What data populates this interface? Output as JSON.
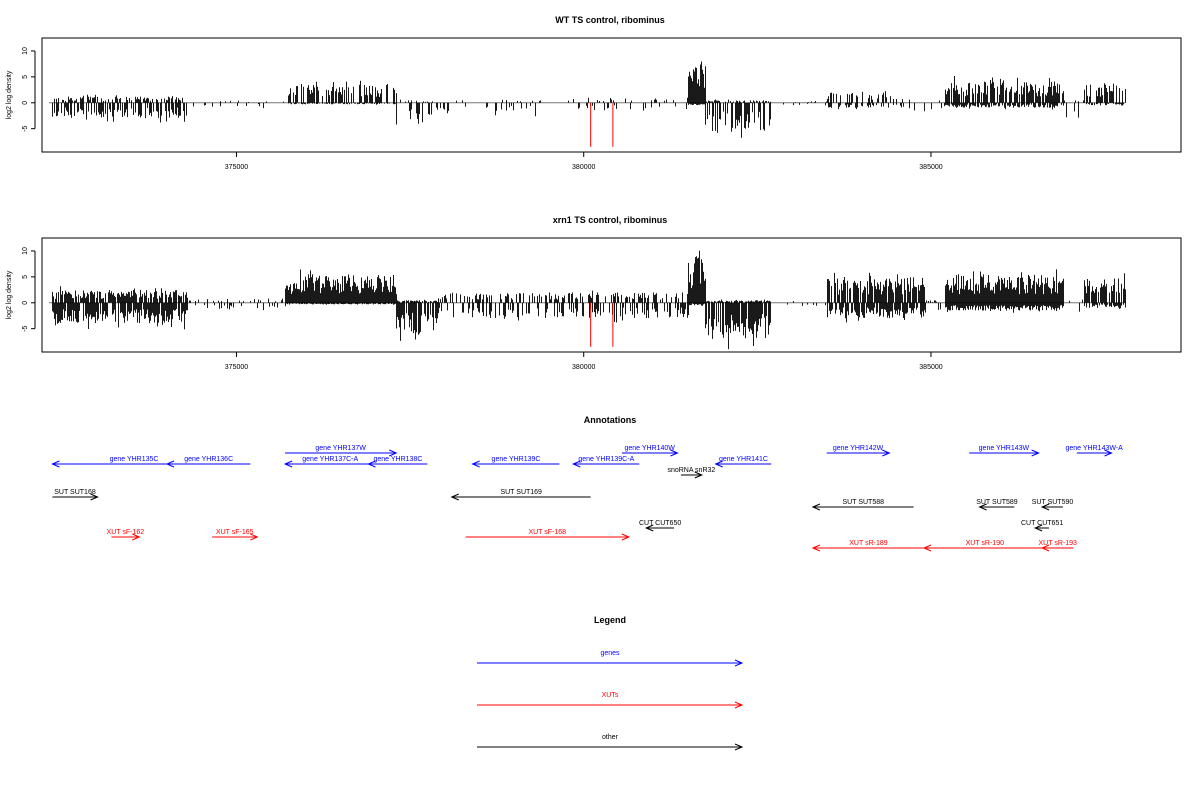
{
  "chart_data": [
    {
      "type": "bar",
      "title": "WT TS control, ribominus",
      "ylabel": "log2 log density",
      "xlim": [
        372200,
        388600
      ],
      "ylim": [
        -9.5,
        12.5
      ],
      "yticks": [
        -5,
        0,
        5,
        10
      ],
      "xticks": [
        375000,
        380000,
        385000
      ],
      "xtick_labels": [
        "375000",
        "380000",
        "385000"
      ],
      "baseline_range": [
        372300,
        387800
      ],
      "colors": {
        "bars": "#000000",
        "highlight": "#ff0000",
        "baseline": "#777777"
      },
      "highlight_lines": [
        {
          "x": 380100,
          "y": -8.5
        },
        {
          "x": 380420,
          "y": -8.5
        }
      ],
      "segments": [
        {
          "from": 372350,
          "to": 374300,
          "pos": 1.2,
          "neg": 3.0,
          "density": 0.5
        },
        {
          "from": 374300,
          "to": 375700,
          "pos": 0.4,
          "neg": 0.8,
          "density": 0.08
        },
        {
          "from": 375700,
          "to": 377300,
          "pos": 3.5,
          "neg": 0.3,
          "density": 0.55
        },
        {
          "from": 377300,
          "to": 377800,
          "pos": 0.5,
          "neg": 4.0,
          "density": 0.4
        },
        {
          "from": 377800,
          "to": 379400,
          "pos": 0.6,
          "neg": 2.0,
          "density": 0.15
        },
        {
          "from": 379400,
          "to": 381500,
          "pos": 1.0,
          "neg": 1.5,
          "density": 0.12
        },
        {
          "from": 381500,
          "to": 381750,
          "pos": 9.0,
          "neg": 0.5,
          "density": 1.0
        },
        {
          "from": 381750,
          "to": 382700,
          "pos": 0.5,
          "neg": 5.5,
          "density": 0.6
        },
        {
          "from": 382700,
          "to": 383500,
          "pos": 0.3,
          "neg": 0.5,
          "density": 0.06
        },
        {
          "from": 383500,
          "to": 384600,
          "pos": 2.0,
          "neg": 1.0,
          "density": 0.4
        },
        {
          "from": 384600,
          "to": 385200,
          "pos": 0.5,
          "neg": 1.5,
          "density": 0.1
        },
        {
          "from": 385200,
          "to": 386900,
          "pos": 4.0,
          "neg": 1.0,
          "density": 0.75
        },
        {
          "from": 386900,
          "to": 387200,
          "pos": 0.5,
          "neg": 4.0,
          "density": 0.15
        },
        {
          "from": 387200,
          "to": 387800,
          "pos": 3.8,
          "neg": 0.5,
          "density": 0.6
        }
      ]
    },
    {
      "type": "bar",
      "title": "xrn1 TS control, ribominus",
      "ylabel": "log2 log density",
      "xlim": [
        372200,
        388600
      ],
      "ylim": [
        -9.5,
        12.5
      ],
      "yticks": [
        -5,
        0,
        5,
        10
      ],
      "xticks": [
        375000,
        380000,
        385000
      ],
      "xtick_labels": [
        "375000",
        "380000",
        "385000"
      ],
      "baseline_range": [
        372300,
        387800
      ],
      "colors": {
        "bars": "#000000",
        "highlight": "#ff0000",
        "baseline": "#777777"
      },
      "highlight_lines": [
        {
          "x": 380100,
          "y": -8.5
        },
        {
          "x": 380420,
          "y": -8.5
        }
      ],
      "segments": [
        {
          "from": 372350,
          "to": 374300,
          "pos": 2.5,
          "neg": 4.0,
          "density": 0.8
        },
        {
          "from": 374300,
          "to": 375700,
          "pos": 0.8,
          "neg": 1.2,
          "density": 0.2
        },
        {
          "from": 375700,
          "to": 377300,
          "pos": 5.5,
          "neg": 0.3,
          "density": 1.0
        },
        {
          "from": 377300,
          "to": 377900,
          "pos": 0.5,
          "neg": 6.0,
          "density": 0.75
        },
        {
          "from": 377900,
          "to": 381500,
          "pos": 2.0,
          "neg": 3.0,
          "density": 0.45
        },
        {
          "from": 381500,
          "to": 381750,
          "pos": 9.0,
          "neg": 0.5,
          "density": 1.0
        },
        {
          "from": 381750,
          "to": 382700,
          "pos": 0.5,
          "neg": 7.0,
          "density": 0.85
        },
        {
          "from": 382700,
          "to": 383500,
          "pos": 0.4,
          "neg": 0.6,
          "density": 0.08
        },
        {
          "from": 383500,
          "to": 384900,
          "pos": 5.0,
          "neg": 3.0,
          "density": 0.8
        },
        {
          "from": 384900,
          "to": 385200,
          "pos": 0.5,
          "neg": 2.0,
          "density": 0.2
        },
        {
          "from": 385200,
          "to": 386900,
          "pos": 5.5,
          "neg": 1.5,
          "density": 1.0
        },
        {
          "from": 386900,
          "to": 387200,
          "pos": 1.0,
          "neg": 4.5,
          "density": 0.2
        },
        {
          "from": 387200,
          "to": 387800,
          "pos": 5.0,
          "neg": 1.0,
          "density": 0.75
        }
      ]
    }
  ],
  "annotations": {
    "title": "Annotations",
    "items": [
      {
        "label": "gene YHR135C",
        "color": "#0000ff",
        "x1": 372350,
        "x2": 374700,
        "dir": "left",
        "lane": 1
      },
      {
        "label": "gene YHR136C",
        "color": "#0000ff",
        "x1": 374000,
        "x2": 375200,
        "dir": "left",
        "lane": 1
      },
      {
        "label": "gene YHR137W",
        "color": "#0000ff",
        "x1": 375700,
        "x2": 377300,
        "dir": "right",
        "lane": 0
      },
      {
        "label": "gene YHR137C-A",
        "color": "#0000ff",
        "x1": 375700,
        "x2": 377000,
        "dir": "left",
        "lane": 1
      },
      {
        "label": "gene YHR138C",
        "color": "#0000ff",
        "x1": 376900,
        "x2": 377750,
        "dir": "left",
        "lane": 1
      },
      {
        "label": "gene YHR139C",
        "color": "#0000ff",
        "x1": 378400,
        "x2": 379650,
        "dir": "left",
        "lane": 1
      },
      {
        "label": "gene YHR139C-A",
        "color": "#0000ff",
        "x1": 379850,
        "x2": 380800,
        "dir": "left",
        "lane": 1
      },
      {
        "label": "gene YHR140W",
        "color": "#0000ff",
        "x1": 380550,
        "x2": 381350,
        "dir": "right",
        "lane": 0
      },
      {
        "label": "gene YHR141C",
        "color": "#0000ff",
        "x1": 381900,
        "x2": 382700,
        "dir": "left",
        "lane": 1
      },
      {
        "label": "gene YHR142W",
        "color": "#0000ff",
        "x1": 383500,
        "x2": 384400,
        "dir": "right",
        "lane": 0
      },
      {
        "label": "gene YHR143W",
        "color": "#0000ff",
        "x1": 385550,
        "x2": 386550,
        "dir": "right",
        "lane": 0
      },
      {
        "label": "gene YHR143W-A",
        "color": "#0000ff",
        "x1": 387100,
        "x2": 387600,
        "dir": "right",
        "lane": 0
      },
      {
        "label": "snoRNA snR32",
        "color": "#000000",
        "x1": 381400,
        "x2": 381700,
        "dir": "right",
        "lane": 2
      },
      {
        "label": "SUT SUT168",
        "color": "#000000",
        "x1": 372350,
        "x2": 373000,
        "dir": "right",
        "lane": 3
      },
      {
        "label": "SUT SUT169",
        "color": "#000000",
        "x1": 378100,
        "x2": 380100,
        "dir": "left",
        "lane": 3
      },
      {
        "label": "SUT SUT588",
        "color": "#000000",
        "x1": 383300,
        "x2": 384750,
        "dir": "left",
        "lane": 4
      },
      {
        "label": "SUT SUT589",
        "color": "#000000",
        "x1": 385700,
        "x2": 386200,
        "dir": "left",
        "lane": 4
      },
      {
        "label": "SUT SUT590",
        "color": "#000000",
        "x1": 386600,
        "x2": 386900,
        "dir": "left",
        "lane": 4
      },
      {
        "label": "CUT CUT650",
        "color": "#000000",
        "x1": 380900,
        "x2": 381300,
        "dir": "left",
        "lane": 5
      },
      {
        "label": "CUT CUT651",
        "color": "#000000",
        "x1": 386500,
        "x2": 386700,
        "dir": "left",
        "lane": 5
      },
      {
        "label": "XUT sF-162",
        "color": "#ff0000",
        "x1": 373200,
        "x2": 373600,
        "dir": "right",
        "lane": 6
      },
      {
        "label": "XUT sF-165",
        "color": "#ff0000",
        "x1": 374650,
        "x2": 375300,
        "dir": "right",
        "lane": 6
      },
      {
        "label": "XUT sF-168",
        "color": "#ff0000",
        "x1": 378300,
        "x2": 380650,
        "dir": "right",
        "lane": 6
      },
      {
        "label": "XUT sR-189",
        "color": "#ff0000",
        "x1": 383300,
        "x2": 384900,
        "dir": "left",
        "lane": 7
      },
      {
        "label": "XUT sR-190",
        "color": "#ff0000",
        "x1": 384900,
        "x2": 386650,
        "dir": "left",
        "lane": 7
      },
      {
        "label": "XUT sR-193",
        "color": "#ff0000",
        "x1": 386600,
        "x2": 387050,
        "dir": "left",
        "lane": 7
      }
    ]
  },
  "legend": {
    "title": "Legend",
    "items": [
      {
        "label": "genes",
        "color": "#0000ff"
      },
      {
        "label": "XUTs",
        "color": "#ff0000"
      },
      {
        "label": "other",
        "color": "#000000"
      }
    ]
  }
}
